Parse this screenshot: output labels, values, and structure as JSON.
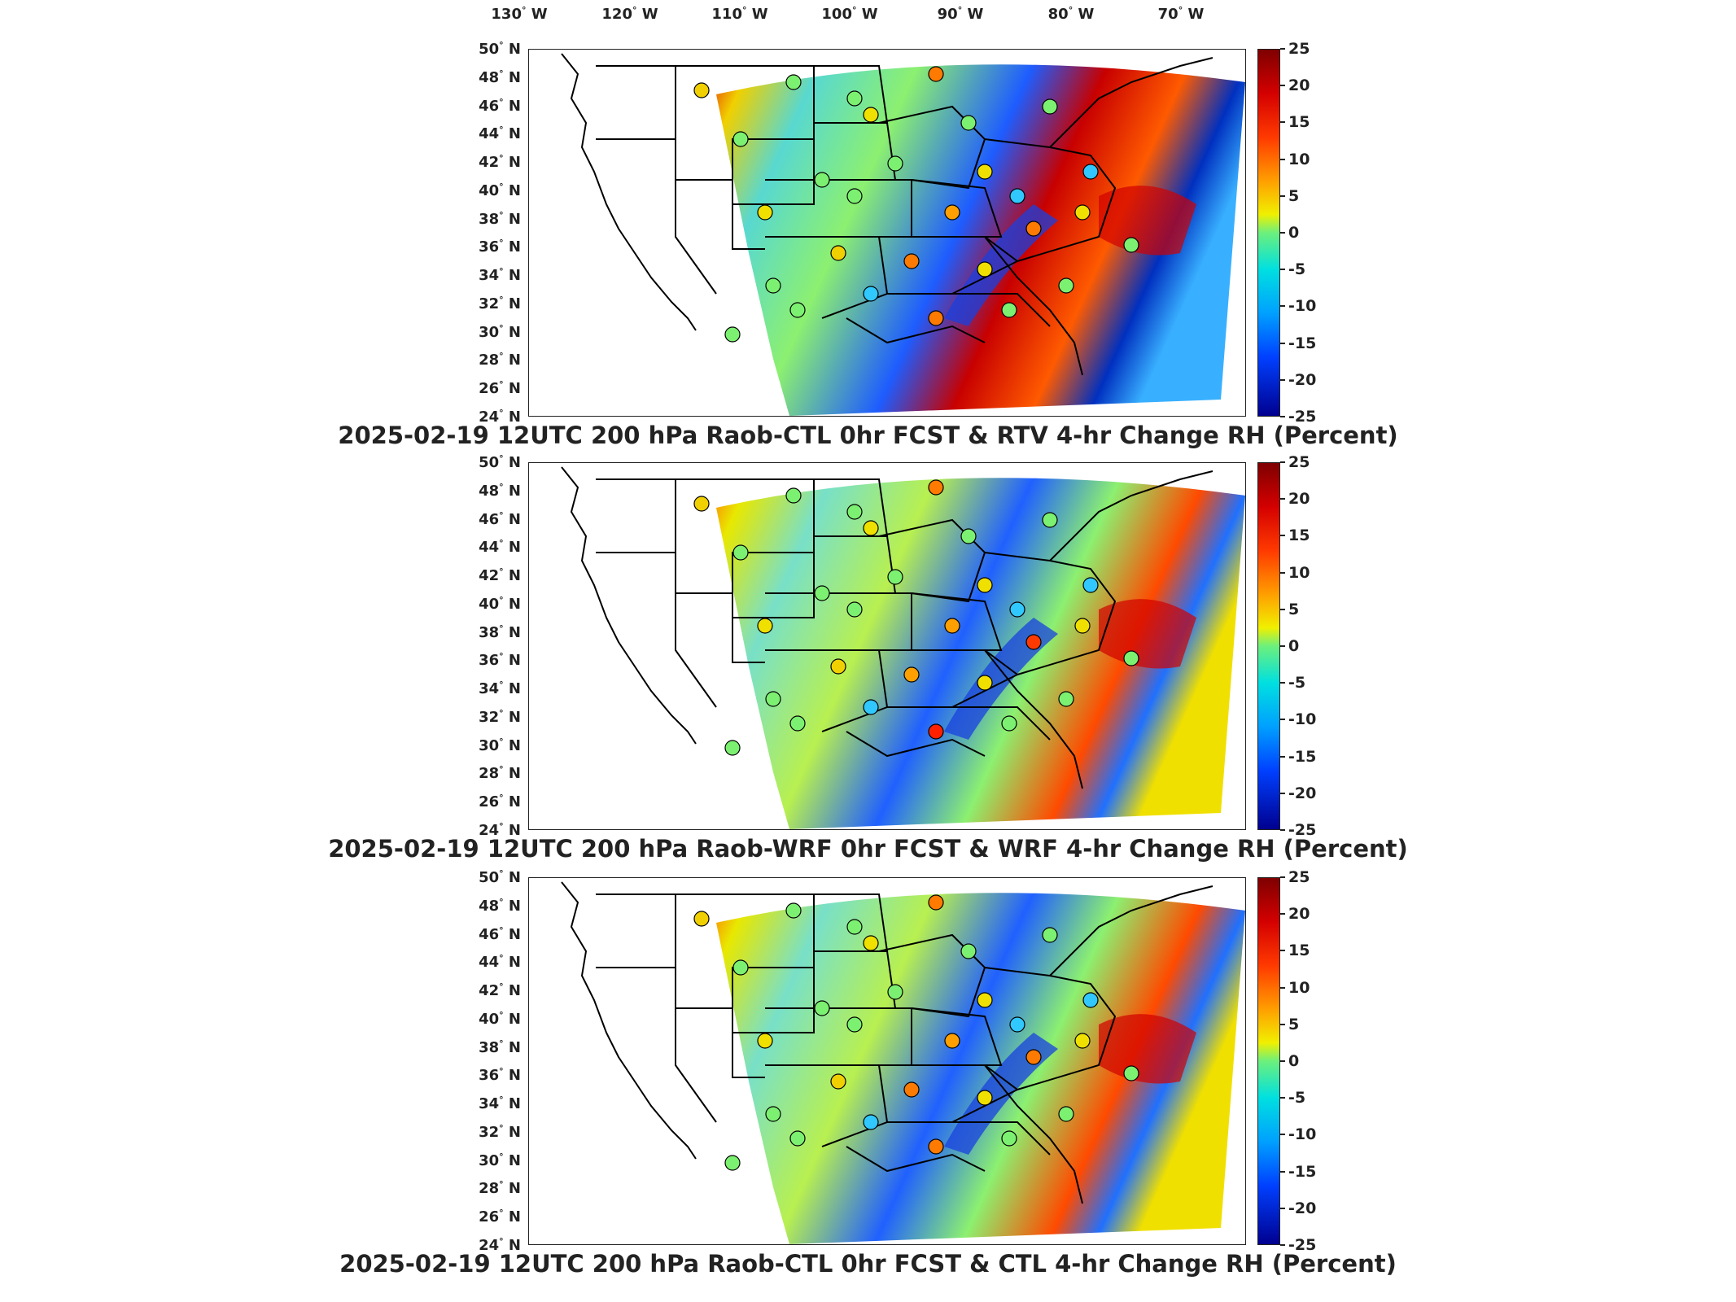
{
  "longitude_labels": [
    "130",
    "120",
    "110",
    "100",
    "90",
    "80",
    "70"
  ],
  "longitude_suffix": "W",
  "latitude_labels": [
    "50",
    "48",
    "46",
    "44",
    "42",
    "40",
    "38",
    "36",
    "34",
    "32",
    "30",
    "28",
    "26",
    "24"
  ],
  "latitude_suffix": "N",
  "colorbar_ticks": [
    "25",
    "20",
    "15",
    "10",
    "5",
    "0",
    "-5",
    "-10",
    "-15",
    "-20",
    "-25"
  ],
  "colors": {
    "high": "#7f0000",
    "mid_high": "#ffa000",
    "neutral": "#6cf07c",
    "mid_low": "#00a0ff",
    "low": "#00008f"
  },
  "panels": [
    {
      "title": "2025-02-19 12UTC 200 hPa Raob-CTL 0hr FCST & RTV 4-hr Change RH (Percent)"
    },
    {
      "title": "2025-02-19 12UTC 200 hPa Raob-WRF 0hr FCST & WRF 4-hr Change RH (Percent)"
    },
    {
      "title": "2025-02-19 12UTC 200 hPa Raob-CTL 0hr FCST & CTL 4-hr Change RH (Percent)"
    }
  ]
}
